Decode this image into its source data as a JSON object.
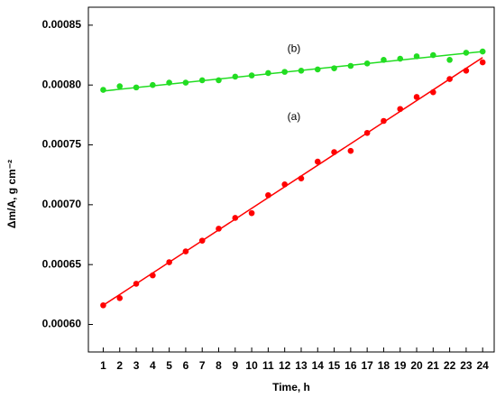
{
  "chart_data": {
    "type": "scatter",
    "x_label": "Time, h",
    "y_label": "Δm/A, g cm⁻²",
    "x": [
      1,
      2,
      3,
      4,
      5,
      6,
      7,
      8,
      9,
      10,
      11,
      12,
      13,
      14,
      15,
      16,
      17,
      18,
      19,
      20,
      21,
      22,
      23,
      24
    ],
    "fit_x": [
      1,
      24
    ],
    "series": [
      {
        "name": "(a)",
        "color": "#ff0000",
        "values": [
          0.000616,
          0.000622,
          0.000634,
          0.000641,
          0.000652,
          0.000661,
          0.00067,
          0.00068,
          0.000689,
          0.000693,
          0.000708,
          0.000717,
          0.000722,
          0.000736,
          0.000744,
          0.000745,
          0.00076,
          0.00077,
          0.00078,
          0.00079,
          0.000794,
          0.000805,
          0.000812,
          0.000819
        ],
        "fit": [
          0.000616,
          0.000823
        ]
      },
      {
        "name": "(b)",
        "color": "#22dd22",
        "values": [
          0.000796,
          0.000799,
          0.000798,
          0.0008,
          0.000802,
          0.000802,
          0.000804,
          0.000804,
          0.000807,
          0.000808,
          0.00081,
          0.000811,
          0.000812,
          0.000813,
          0.000814,
          0.000816,
          0.000818,
          0.000821,
          0.000822,
          0.000824,
          0.000825,
          0.000821,
          0.000827,
          0.000828
        ],
        "fit": [
          0.000795,
          0.000828
        ]
      }
    ],
    "xlim": [
      0.1,
      24.7
    ],
    "ylim": [
      0.000577,
      0.000865
    ],
    "xticks": [
      1,
      2,
      3,
      4,
      5,
      6,
      7,
      8,
      9,
      10,
      11,
      12,
      13,
      14,
      15,
      16,
      17,
      18,
      19,
      20,
      21,
      22,
      23,
      24
    ],
    "yticks": [
      {
        "value": 0.0006,
        "label": "0.00060"
      },
      0.00065,
      {
        "value": 0.0007,
        "label": "0.00070"
      },
      0.00075,
      {
        "value": 0.0008,
        "label": "0.00080"
      },
      0.00085
    ]
  }
}
